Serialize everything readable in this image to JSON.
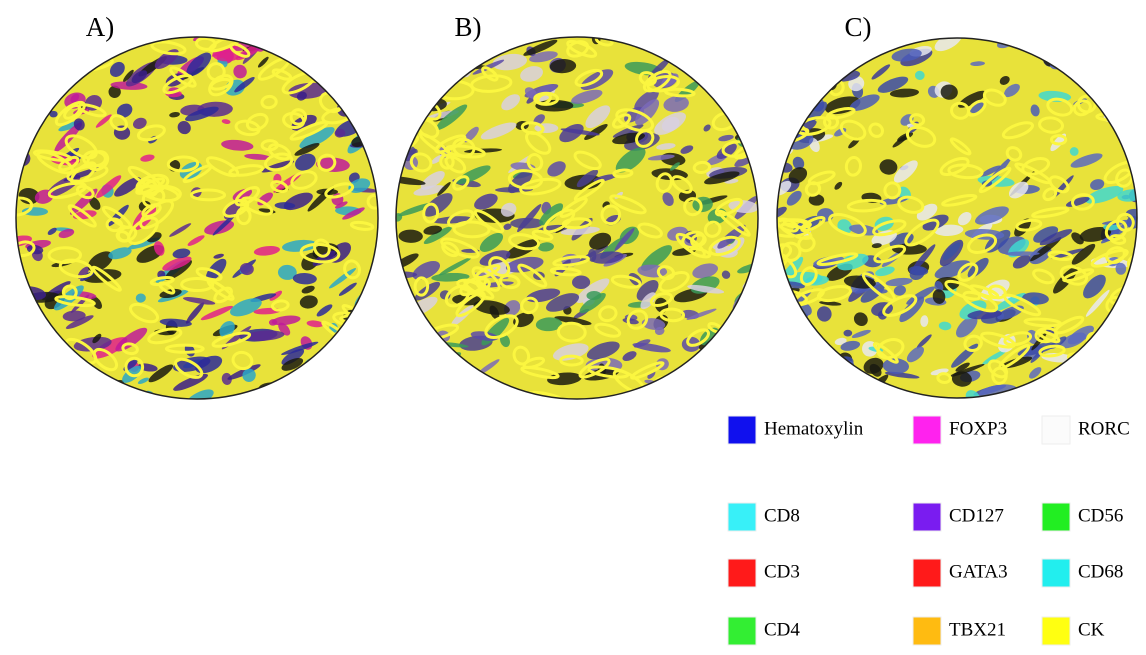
{
  "panels": [
    {
      "label": "A)"
    },
    {
      "label": "B)"
    },
    {
      "label": "C)"
    }
  ],
  "legend": [
    {
      "label": "Hematoxylin",
      "color": "#1010ee"
    },
    {
      "label": "CD8",
      "color": "#38f0f8"
    },
    {
      "label": "CD3",
      "color": "#ff1a1a"
    },
    {
      "label": "CD4",
      "color": "#33ee33"
    },
    {
      "label": "FOXP3",
      "color": "#ff22ee"
    },
    {
      "label": "CD127",
      "color": "#7a1cf0"
    },
    {
      "label": "GATA3",
      "color": "#ff1a1a"
    },
    {
      "label": "TBX21",
      "color": "#ffbb11"
    },
    {
      "label": "RORC",
      "color": "#fbfbfb"
    },
    {
      "label": "CD56",
      "color": "#22ee22"
    },
    {
      "label": "CD68",
      "color": "#22eeee"
    },
    {
      "label": "CK",
      "color": "#ffff11"
    }
  ]
}
